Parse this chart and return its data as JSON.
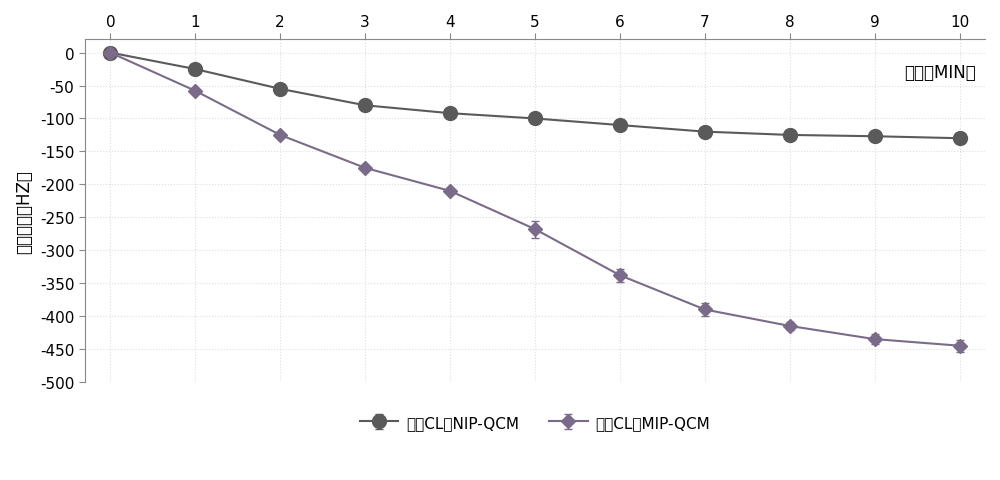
{
  "x": [
    0,
    1,
    2,
    3,
    4,
    5,
    6,
    7,
    8,
    9,
    10
  ],
  "mip_y": [
    0,
    -58,
    -125,
    -175,
    -210,
    -268,
    -338,
    -390,
    -415,
    -435,
    -445
  ],
  "nip_y": [
    0,
    -25,
    -55,
    -80,
    -92,
    -100,
    -110,
    -120,
    -125,
    -127,
    -130
  ],
  "mip_yerr": [
    0,
    4,
    4,
    4,
    5,
    13,
    10,
    10,
    6,
    7,
    9
  ],
  "nip_yerr": [
    0,
    3,
    3,
    3,
    3,
    4,
    4,
    7,
    7,
    7,
    7
  ],
  "mip_color": "#7B6B8A",
  "nip_color": "#5A5A5A",
  "xlabel": "时间（MIN）",
  "ylabel": "频率变化（HZ）",
  "ylim": [
    -500,
    20
  ],
  "xlim": [
    -0.3,
    10.3
  ],
  "yticks": [
    0,
    -50,
    -100,
    -150,
    -200,
    -250,
    -300,
    -350,
    -400,
    -450,
    -500
  ],
  "xticks": [
    0,
    1,
    2,
    3,
    4,
    5,
    6,
    7,
    8,
    9,
    10
  ],
  "legend_mip": "基于CL的MIP-QCM",
  "legend_nip": "基于CL的NIP-QCM",
  "marker_size_mip": 7,
  "marker_size_nip": 10,
  "line_width": 1.5,
  "figsize": [
    10.0,
    4.81
  ],
  "dpi": 100,
  "bg_color": "#FFFFFF",
  "grid_color": "#C8C8C8",
  "tick_fontsize": 11,
  "label_fontsize": 12,
  "legend_fontsize": 11
}
